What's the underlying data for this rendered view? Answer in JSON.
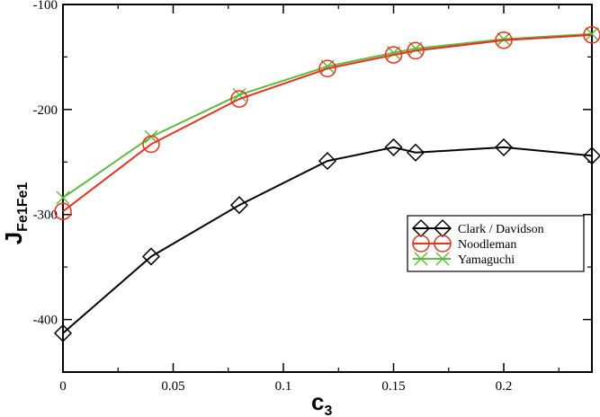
{
  "chart_data": {
    "type": "line",
    "title": "",
    "xlabel": "c",
    "xlabel_sub": "3",
    "ylabel": "J",
    "ylabel_sub": "Fe1Fe1",
    "xlim": [
      0,
      0.24
    ],
    "ylim": [
      -450,
      -100
    ],
    "xticks": [
      0,
      0.05,
      0.1,
      0.15,
      0.2
    ],
    "xtick_labels": [
      "0",
      "0.05",
      "0.1",
      "0.15",
      "0.2"
    ],
    "yticks": [
      -400,
      -300,
      -200,
      -100
    ],
    "ytick_labels": [
      "-400",
      "-300",
      "-200",
      "-100"
    ],
    "grid": false,
    "legend_position": "right-middle",
    "series": [
      {
        "name": "Clark / Davidson",
        "color": "#000000",
        "marker": "diamond",
        "x": [
          0,
          0.04,
          0.08,
          0.12,
          0.15,
          0.16,
          0.2,
          0.24
        ],
        "y": [
          -413,
          -340,
          -291,
          -249,
          -236,
          -241,
          -236,
          -244
        ]
      },
      {
        "name": "Noodleman",
        "color": "#e8301e",
        "marker": "circle",
        "x": [
          0,
          0.04,
          0.08,
          0.12,
          0.15,
          0.16,
          0.2,
          0.24
        ],
        "y": [
          -297,
          -233,
          -190,
          -161,
          -148,
          -144,
          -134,
          -129
        ]
      },
      {
        "name": "Yamaguchi",
        "color": "#5fba3e",
        "marker": "x",
        "x": [
          0,
          0.04,
          0.08,
          0.12,
          0.15,
          0.16,
          0.2,
          0.24
        ],
        "y": [
          -284,
          -226,
          -186,
          -159,
          -146,
          -142,
          -133,
          -128
        ]
      }
    ]
  }
}
